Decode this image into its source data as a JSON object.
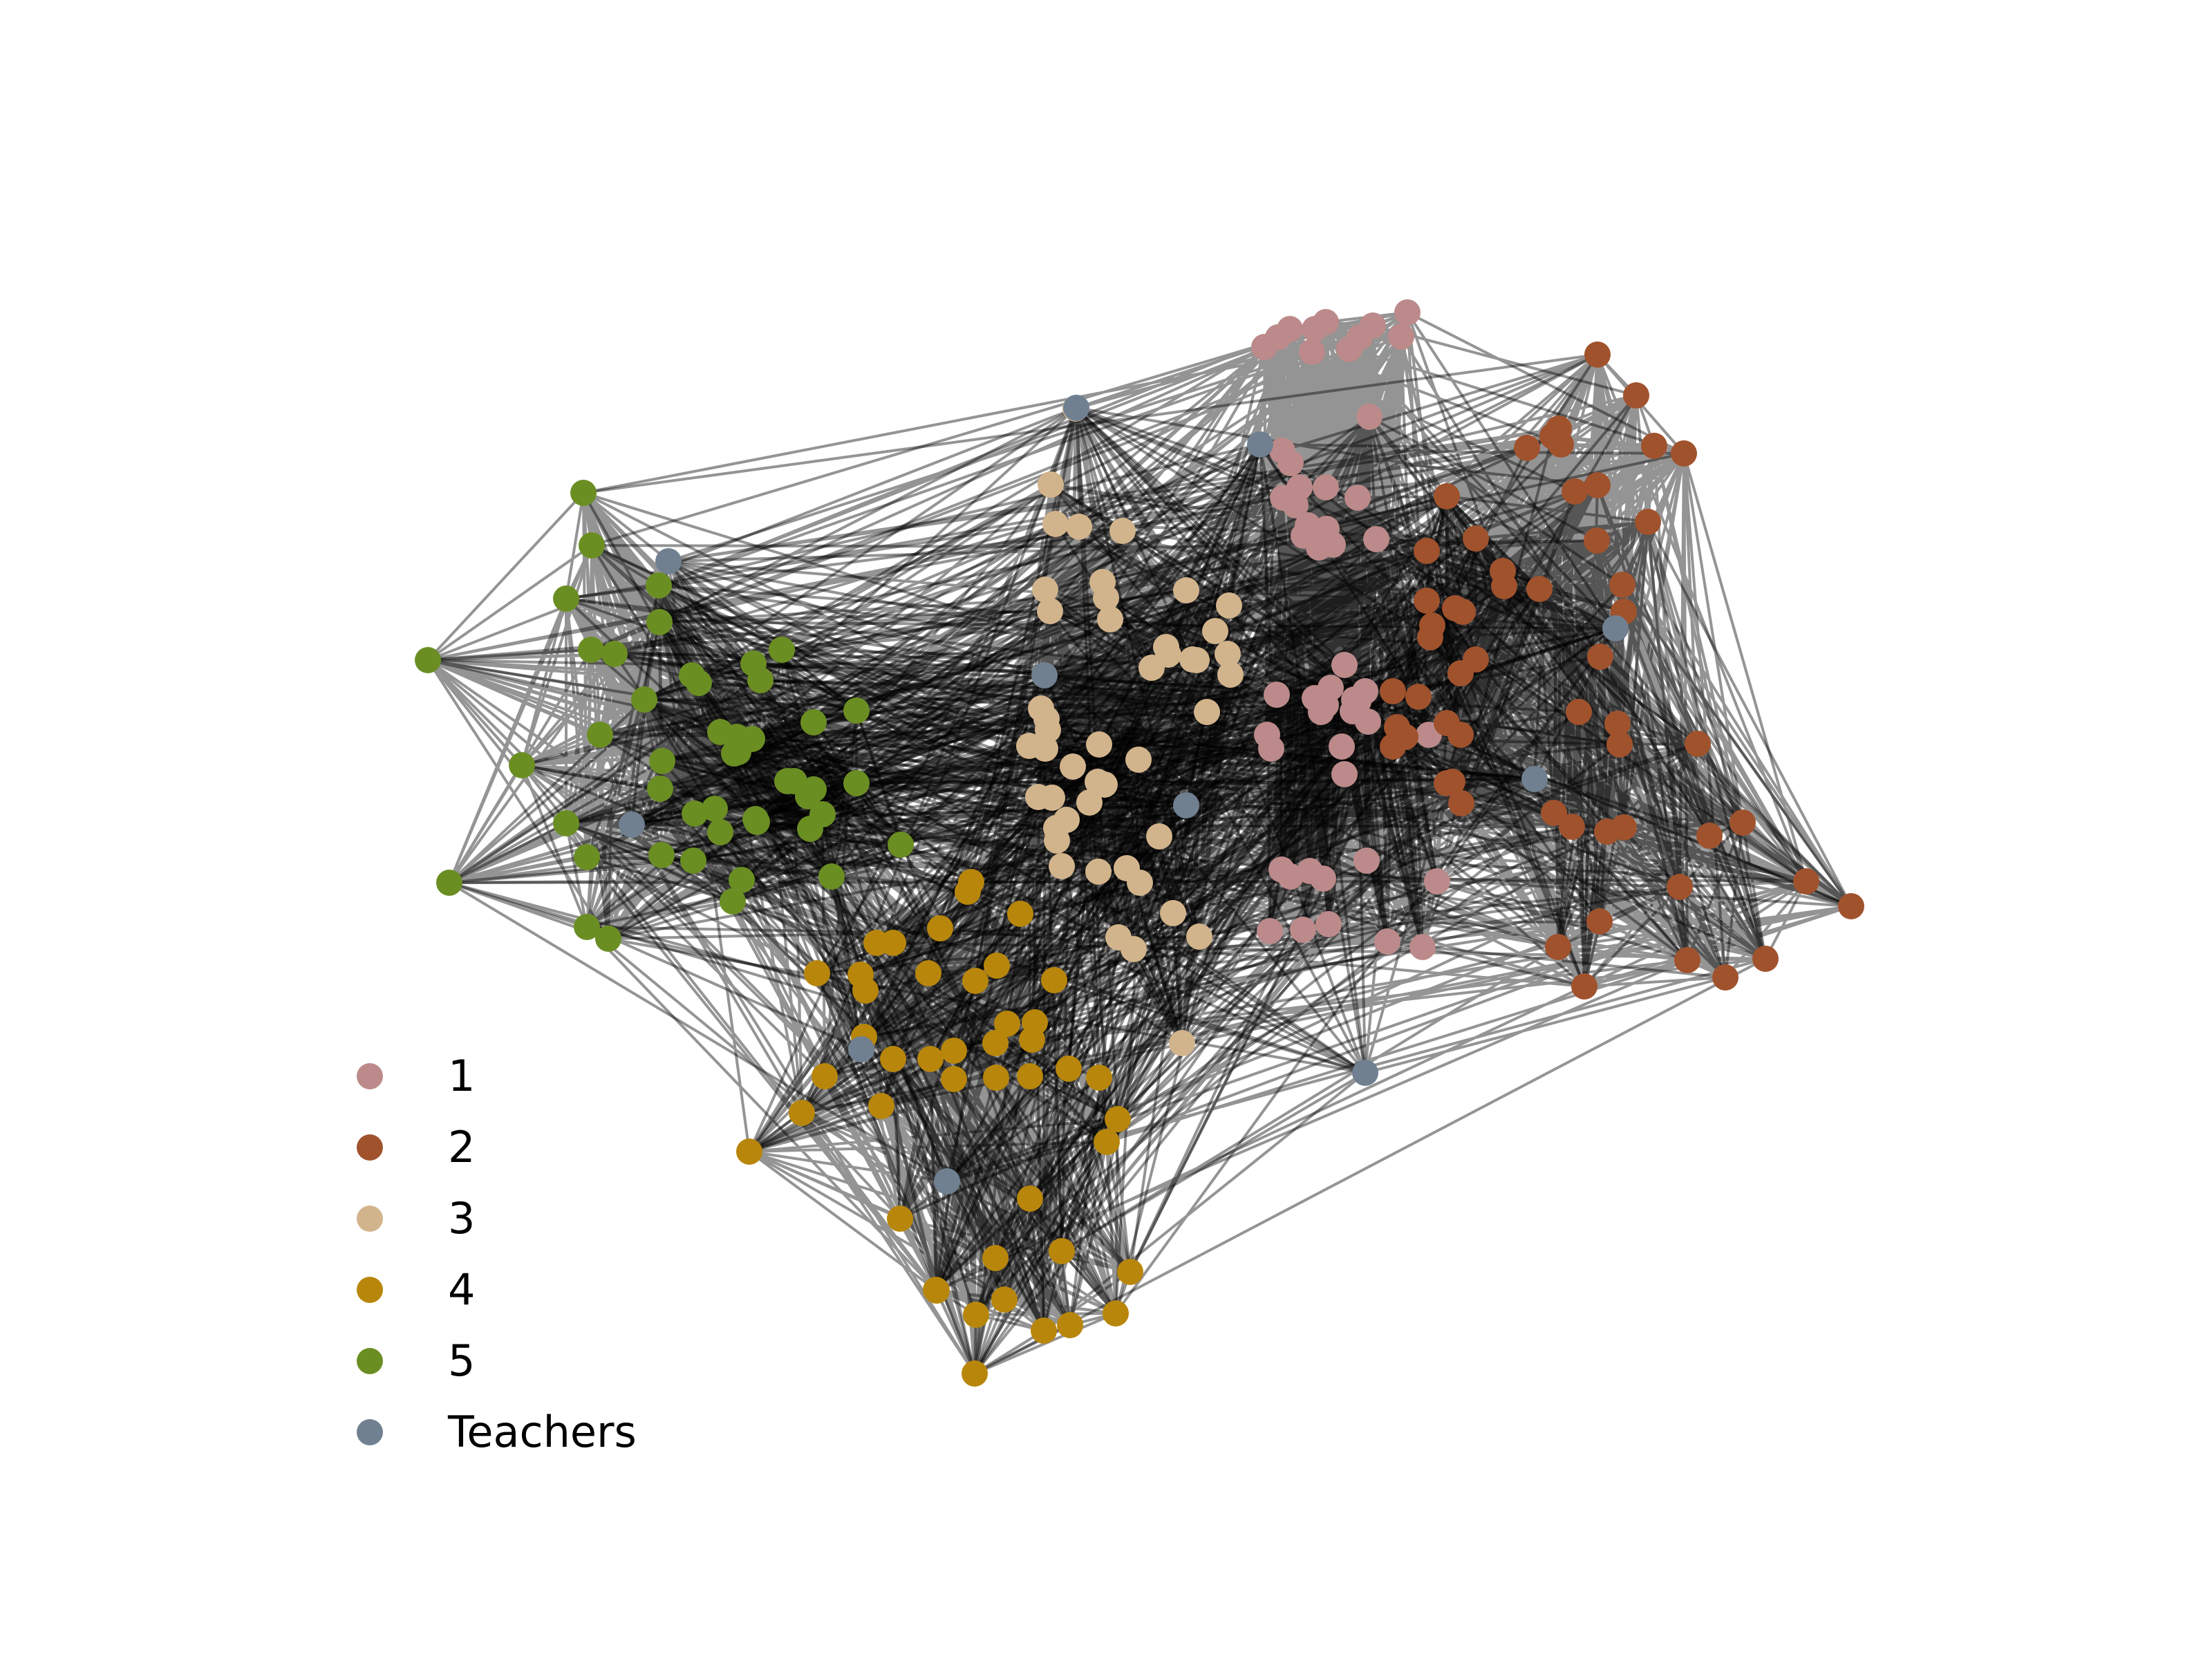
{
  "groups": [
    {
      "id": "1",
      "label": "1",
      "color": "#bc8a8a"
    },
    {
      "id": "2",
      "label": "2",
      "color": "#a0522d"
    },
    {
      "id": "3",
      "label": "3",
      "color": "#d2b48c"
    },
    {
      "id": "4",
      "label": "4",
      "color": "#b8860b"
    },
    {
      "id": "5",
      "label": "5",
      "color": "#6b8e23"
    },
    {
      "id": "T",
      "label": "Teachers",
      "color": "#708090"
    }
  ],
  "edge_color": "#000000"
}
